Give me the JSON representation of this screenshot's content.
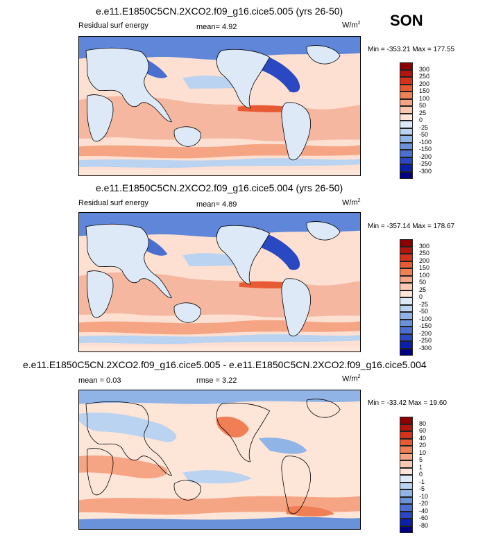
{
  "season": "SON",
  "panels": [
    {
      "title": "e.e11.E1850C5CN.2XCO2.f09_g16.cice5.005 (yrs 26-50)",
      "left_label": "Residual surf energy",
      "mid_label": "mean=   4.92",
      "units": "W/m",
      "units_sup": "2",
      "minmax": "Min = -353.21 Max = 177.55",
      "levels": [
        "300",
        "250",
        "200",
        "150",
        "100",
        "50",
        "25",
        "0",
        "-25",
        "-50",
        "-100",
        "-150",
        "-200",
        "-250",
        "-300"
      ]
    },
    {
      "title": "e.e11.E1850C5CN.2XCO2.f09_g16.cice5.004 (yrs 26-50)",
      "left_label": "Residual surf energy",
      "mid_label": "mean=   4.89",
      "units": "W/m",
      "units_sup": "2",
      "minmax": "Min = -357.14 Max = 178.67",
      "levels": [
        "300",
        "250",
        "200",
        "150",
        "100",
        "50",
        "25",
        "0",
        "-25",
        "-50",
        "-100",
        "-150",
        "-200",
        "-250",
        "-300"
      ]
    },
    {
      "title": "e.e11.E1850C5CN.2XCO2.f09_g16.cice5.005 - e.e11.E1850C5CN.2XCO2.f09_g16.cice5.004",
      "left_label": "mean =  0.03",
      "mid_label": "rmse =   3.22",
      "units": "W/m",
      "units_sup": "2",
      "minmax": "Min = -33.42 Max =  19.60",
      "levels": [
        "80",
        "60",
        "40",
        "20",
        "10",
        "5",
        "1",
        "0",
        "-1",
        "-5",
        "-10",
        "-20",
        "-40",
        "-60",
        "-80"
      ]
    }
  ],
  "colors": {
    "palette": [
      "#8b0000",
      "#b2150b",
      "#d4321c",
      "#e85a33",
      "#f07f55",
      "#f6a584",
      "#fac8b0",
      "#fde5d8",
      "#dceaf7",
      "#bad3f0",
      "#90b4e6",
      "#6a92da",
      "#4a6fd0",
      "#2a48c2",
      "#0a20a8",
      "#000080"
    ],
    "ocean_warm": "#f5b7a0",
    "ocean_pale": "#fde0d2",
    "land": "#dde9f6",
    "cold_ocean": "#5f86d8",
    "coast": "#000000"
  }
}
